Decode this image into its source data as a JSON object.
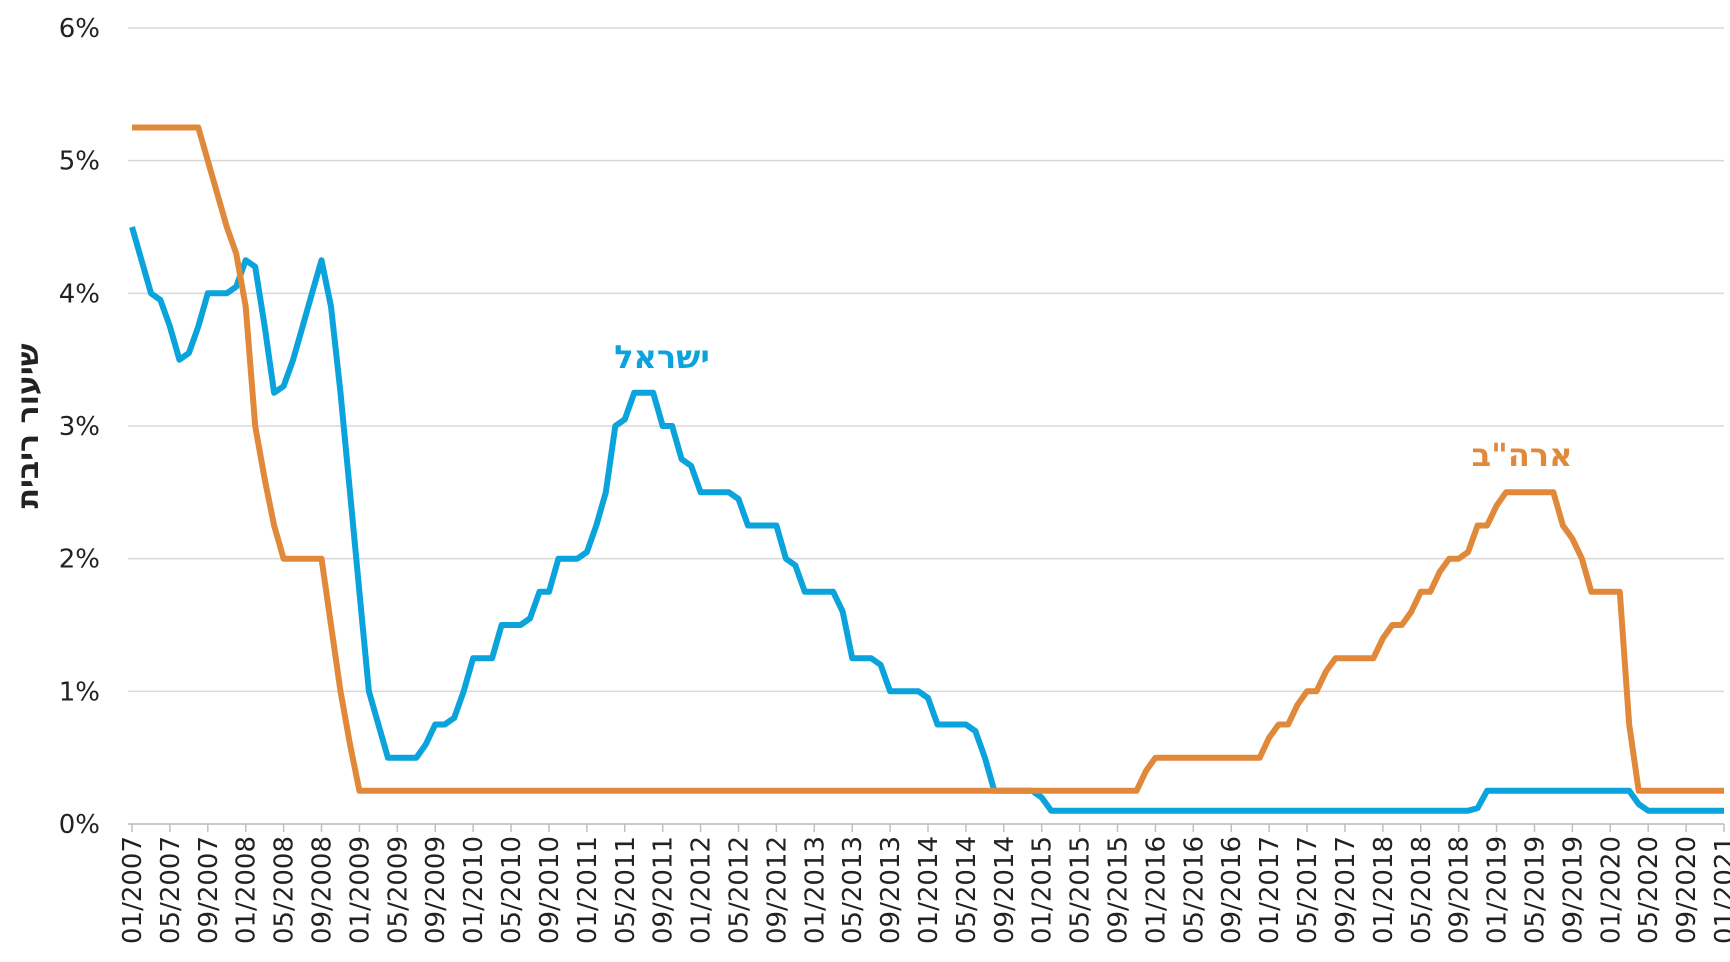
{
  "chart_data": {
    "type": "line",
    "y_label": "שיעור ריבית",
    "categories": [
      "01/2007",
      null,
      null,
      null,
      "05/2007",
      null,
      null,
      null,
      "09/2007",
      null,
      null,
      null,
      "01/2008",
      null,
      null,
      null,
      "05/2008",
      null,
      null,
      null,
      "09/2008",
      null,
      null,
      null,
      "01/2009",
      null,
      null,
      null,
      "05/2009",
      null,
      null,
      null,
      "09/2009",
      null,
      null,
      null,
      "01/2010",
      null,
      null,
      null,
      "05/2010",
      null,
      null,
      null,
      "09/2010",
      null,
      null,
      null,
      "01/2011",
      null,
      null,
      null,
      "05/2011",
      null,
      null,
      null,
      "09/2011",
      null,
      null,
      null,
      "01/2012",
      null,
      null,
      null,
      "05/2012",
      null,
      null,
      null,
      "09/2012",
      null,
      null,
      null,
      "01/2013",
      null,
      null,
      null,
      "05/2013",
      null,
      null,
      null,
      "09/2013",
      null,
      null,
      null,
      "01/2014",
      null,
      null,
      null,
      "05/2014",
      null,
      null,
      null,
      "09/2014",
      null,
      null,
      null,
      "01/2015",
      null,
      null,
      null,
      "05/2015",
      null,
      null,
      null,
      "09/2015",
      null,
      null,
      null,
      "01/2016",
      null,
      null,
      null,
      "05/2016",
      null,
      null,
      null,
      "09/2016",
      null,
      null,
      null,
      "01/2017",
      null,
      null,
      null,
      "05/2017",
      null,
      null,
      null,
      "09/2017",
      null,
      null,
      null,
      "01/2018",
      null,
      null,
      null,
      "05/2018",
      null,
      null,
      null,
      "09/2018",
      null,
      null,
      null,
      "01/2019",
      null,
      null,
      null,
      "05/2019",
      null,
      null,
      null,
      "09/2019",
      null,
      null,
      null,
      "01/2020",
      null,
      null,
      null,
      "05/2020",
      null,
      null,
      null,
      "09/2020",
      null,
      null,
      null,
      "01/2021"
    ],
    "series": [
      {
        "name": "ישראל",
        "color": "#0aa3dc",
        "values": [
          4.5,
          4.25,
          4.0,
          3.95,
          3.75,
          3.5,
          3.55,
          3.75,
          4.0,
          4.0,
          4.0,
          4.05,
          4.25,
          4.2,
          3.75,
          3.25,
          3.3,
          3.5,
          3.75,
          4.0,
          4.25,
          3.9,
          3.25,
          2.5,
          1.75,
          1.0,
          0.75,
          0.5,
          0.5,
          0.5,
          0.5,
          0.6,
          0.75,
          0.75,
          0.8,
          1.0,
          1.25,
          1.25,
          1.25,
          1.5,
          1.5,
          1.5,
          1.55,
          1.75,
          1.75,
          2.0,
          2.0,
          2.0,
          2.05,
          2.25,
          2.5,
          3.0,
          3.05,
          3.25,
          3.25,
          3.25,
          3.0,
          3.0,
          2.75,
          2.7,
          2.5,
          2.5,
          2.5,
          2.5,
          2.45,
          2.25,
          2.25,
          2.25,
          2.25,
          2.0,
          1.95,
          1.75,
          1.75,
          1.75,
          1.75,
          1.6,
          1.25,
          1.25,
          1.25,
          1.2,
          1.0,
          1.0,
          1.0,
          1.0,
          0.95,
          0.75,
          0.75,
          0.75,
          0.75,
          0.7,
          0.5,
          0.25,
          0.25,
          0.25,
          0.25,
          0.25,
          0.2,
          0.1,
          0.1,
          0.1,
          0.1,
          0.1,
          0.1,
          0.1,
          0.1,
          0.1,
          0.1,
          0.1,
          0.1,
          0.1,
          0.1,
          0.1,
          0.1,
          0.1,
          0.1,
          0.1,
          0.1,
          0.1,
          0.1,
          0.1,
          0.1,
          0.1,
          0.1,
          0.1,
          0.1,
          0.1,
          0.1,
          0.1,
          0.1,
          0.1,
          0.1,
          0.1,
          0.1,
          0.1,
          0.1,
          0.1,
          0.1,
          0.1,
          0.1,
          0.1,
          0.1,
          0.1,
          0.12,
          0.25,
          0.25,
          0.25,
          0.25,
          0.25,
          0.25,
          0.25,
          0.25,
          0.25,
          0.25,
          0.25,
          0.25,
          0.25,
          0.25,
          0.25,
          0.25,
          0.15,
          0.1,
          0.1,
          0.1,
          0.1,
          0.1,
          0.1,
          0.1,
          0.1,
          0.1
        ]
      },
      {
        "name": "ארה\"ב",
        "color": "#e0893a",
        "values": [
          5.25,
          5.25,
          5.25,
          5.25,
          5.25,
          5.25,
          5.25,
          5.25,
          5.0,
          4.75,
          4.5,
          4.3,
          3.9,
          3.0,
          2.6,
          2.25,
          2.0,
          2.0,
          2.0,
          2.0,
          2.0,
          1.5,
          1.0,
          0.6,
          0.25,
          0.25,
          0.25,
          0.25,
          0.25,
          0.25,
          0.25,
          0.25,
          0.25,
          0.25,
          0.25,
          0.25,
          0.25,
          0.25,
          0.25,
          0.25,
          0.25,
          0.25,
          0.25,
          0.25,
          0.25,
          0.25,
          0.25,
          0.25,
          0.25,
          0.25,
          0.25,
          0.25,
          0.25,
          0.25,
          0.25,
          0.25,
          0.25,
          0.25,
          0.25,
          0.25,
          0.25,
          0.25,
          0.25,
          0.25,
          0.25,
          0.25,
          0.25,
          0.25,
          0.25,
          0.25,
          0.25,
          0.25,
          0.25,
          0.25,
          0.25,
          0.25,
          0.25,
          0.25,
          0.25,
          0.25,
          0.25,
          0.25,
          0.25,
          0.25,
          0.25,
          0.25,
          0.25,
          0.25,
          0.25,
          0.25,
          0.25,
          0.25,
          0.25,
          0.25,
          0.25,
          0.25,
          0.25,
          0.25,
          0.25,
          0.25,
          0.25,
          0.25,
          0.25,
          0.25,
          0.25,
          0.25,
          0.25,
          0.4,
          0.5,
          0.5,
          0.5,
          0.5,
          0.5,
          0.5,
          0.5,
          0.5,
          0.5,
          0.5,
          0.5,
          0.5,
          0.65,
          0.75,
          0.75,
          0.9,
          1.0,
          1.0,
          1.15,
          1.25,
          1.25,
          1.25,
          1.25,
          1.25,
          1.4,
          1.5,
          1.5,
          1.6,
          1.75,
          1.75,
          1.9,
          2.0,
          2.0,
          2.05,
          2.25,
          2.25,
          2.4,
          2.5,
          2.5,
          2.5,
          2.5,
          2.5,
          2.5,
          2.25,
          2.15,
          2.0,
          1.75,
          1.75,
          1.75,
          1.75,
          0.75,
          0.25,
          0.25,
          0.25,
          0.25,
          0.25,
          0.25,
          0.25,
          0.25,
          0.25,
          0.25
        ]
      }
    ],
    "ylim": [
      0,
      6
    ],
    "yticks": [
      {
        "value": 0,
        "label": "0%"
      },
      {
        "value": 1,
        "label": "1%"
      },
      {
        "value": 2,
        "label": "2%"
      },
      {
        "value": 3,
        "label": "3%"
      },
      {
        "value": 4,
        "label": "4%"
      },
      {
        "value": 5,
        "label": "5%"
      },
      {
        "value": 6,
        "label": "6%"
      }
    ],
    "grid": true
  }
}
